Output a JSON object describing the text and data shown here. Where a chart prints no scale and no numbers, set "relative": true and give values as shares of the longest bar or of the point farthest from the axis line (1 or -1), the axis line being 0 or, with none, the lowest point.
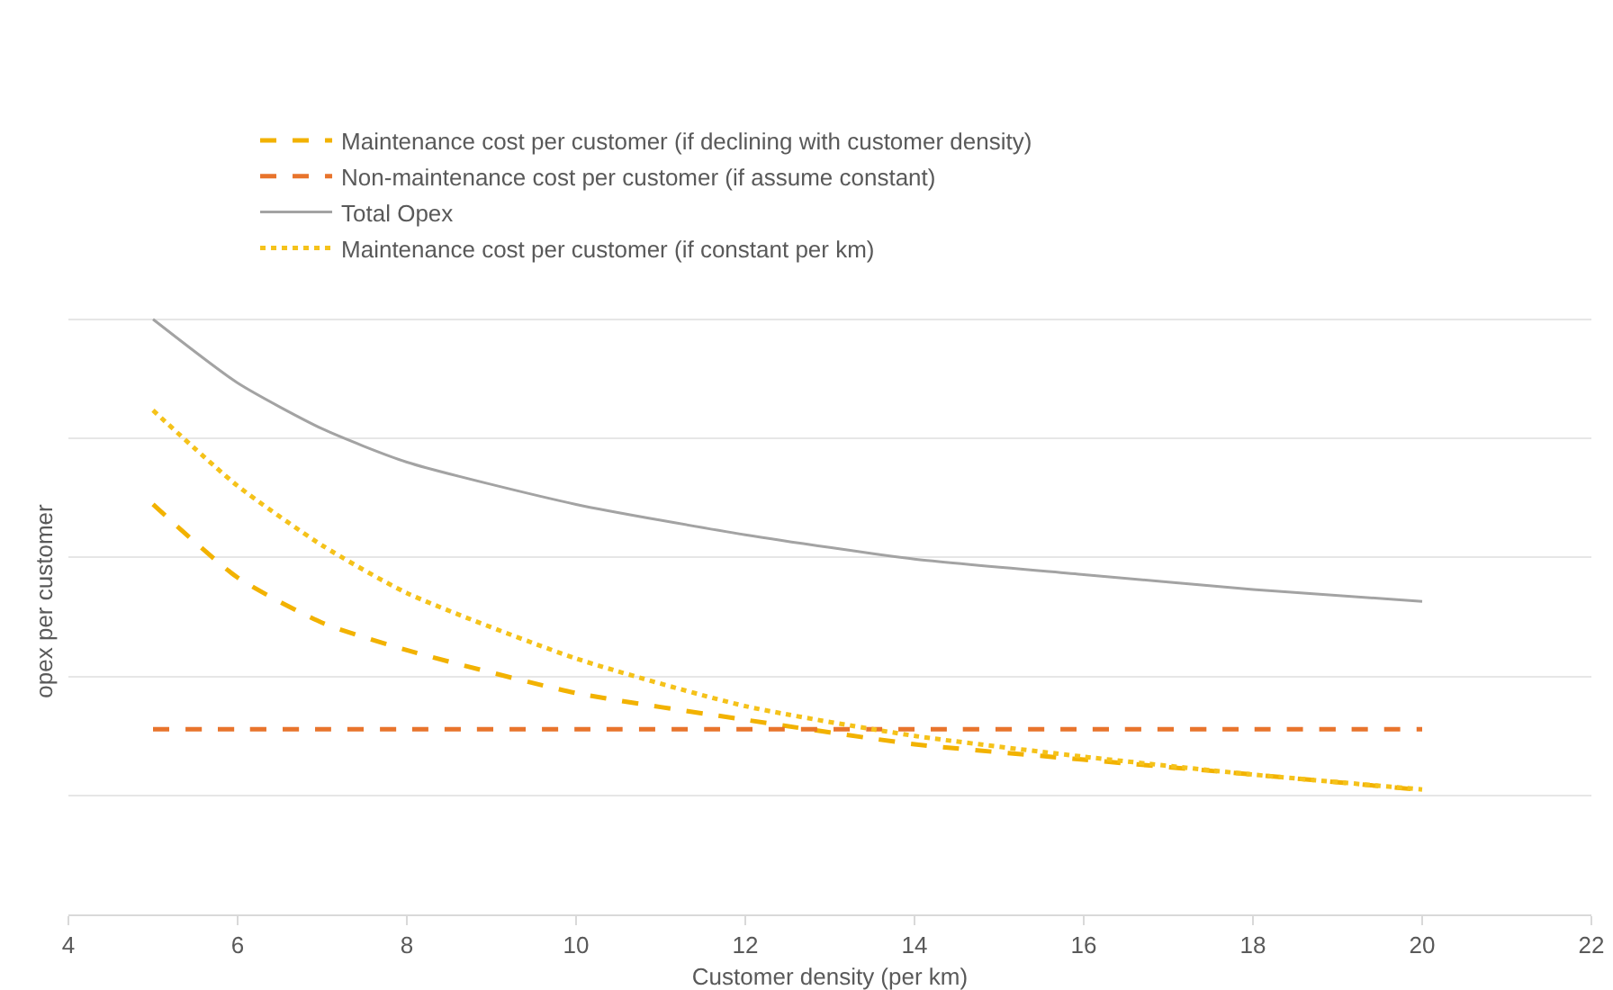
{
  "chart_data": {
    "type": "line",
    "relative": true,
    "xlabel": "Customer density (per km)",
    "ylabel": "opex per customer",
    "x": [
      5,
      6,
      7,
      8,
      10,
      12,
      14,
      16,
      18,
      20
    ],
    "xlim": [
      4,
      22
    ],
    "xticks": [
      4,
      6,
      8,
      10,
      12,
      14,
      16,
      18,
      20,
      22
    ],
    "series": [
      {
        "name": "Maintenance cost per customer (if declining with customer density)",
        "color": "#f2b200",
        "line_style": "dashed",
        "values": [
          0.689,
          0.566,
          0.49,
          0.444,
          0.372,
          0.327,
          0.286,
          0.26,
          0.235,
          0.209
        ]
      },
      {
        "name": "Non-maintenance cost per customer (if assume constant)",
        "color": "#e8742c",
        "line_style": "dashed",
        "values": [
          0.311,
          0.311,
          0.311,
          0.311,
          0.311,
          0.311,
          0.311,
          0.311,
          0.311,
          0.311
        ]
      },
      {
        "name": "Total Opex",
        "color": "#a3a3a3",
        "line_style": "solid",
        "values": [
          1,
          0.893,
          0.816,
          0.76,
          0.689,
          0.638,
          0.597,
          0.571,
          0.546,
          0.526
        ]
      },
      {
        "name": "Maintenance cost per customer (if constant per km)",
        "color": "#f5c21a",
        "line_style": "dotted",
        "values": [
          0.847,
          0.72,
          0.62,
          0.54,
          0.43,
          0.35,
          0.3,
          0.265,
          0.235,
          0.21
        ]
      }
    ],
    "grid": "y",
    "legend": "top left",
    "marker": "none"
  }
}
